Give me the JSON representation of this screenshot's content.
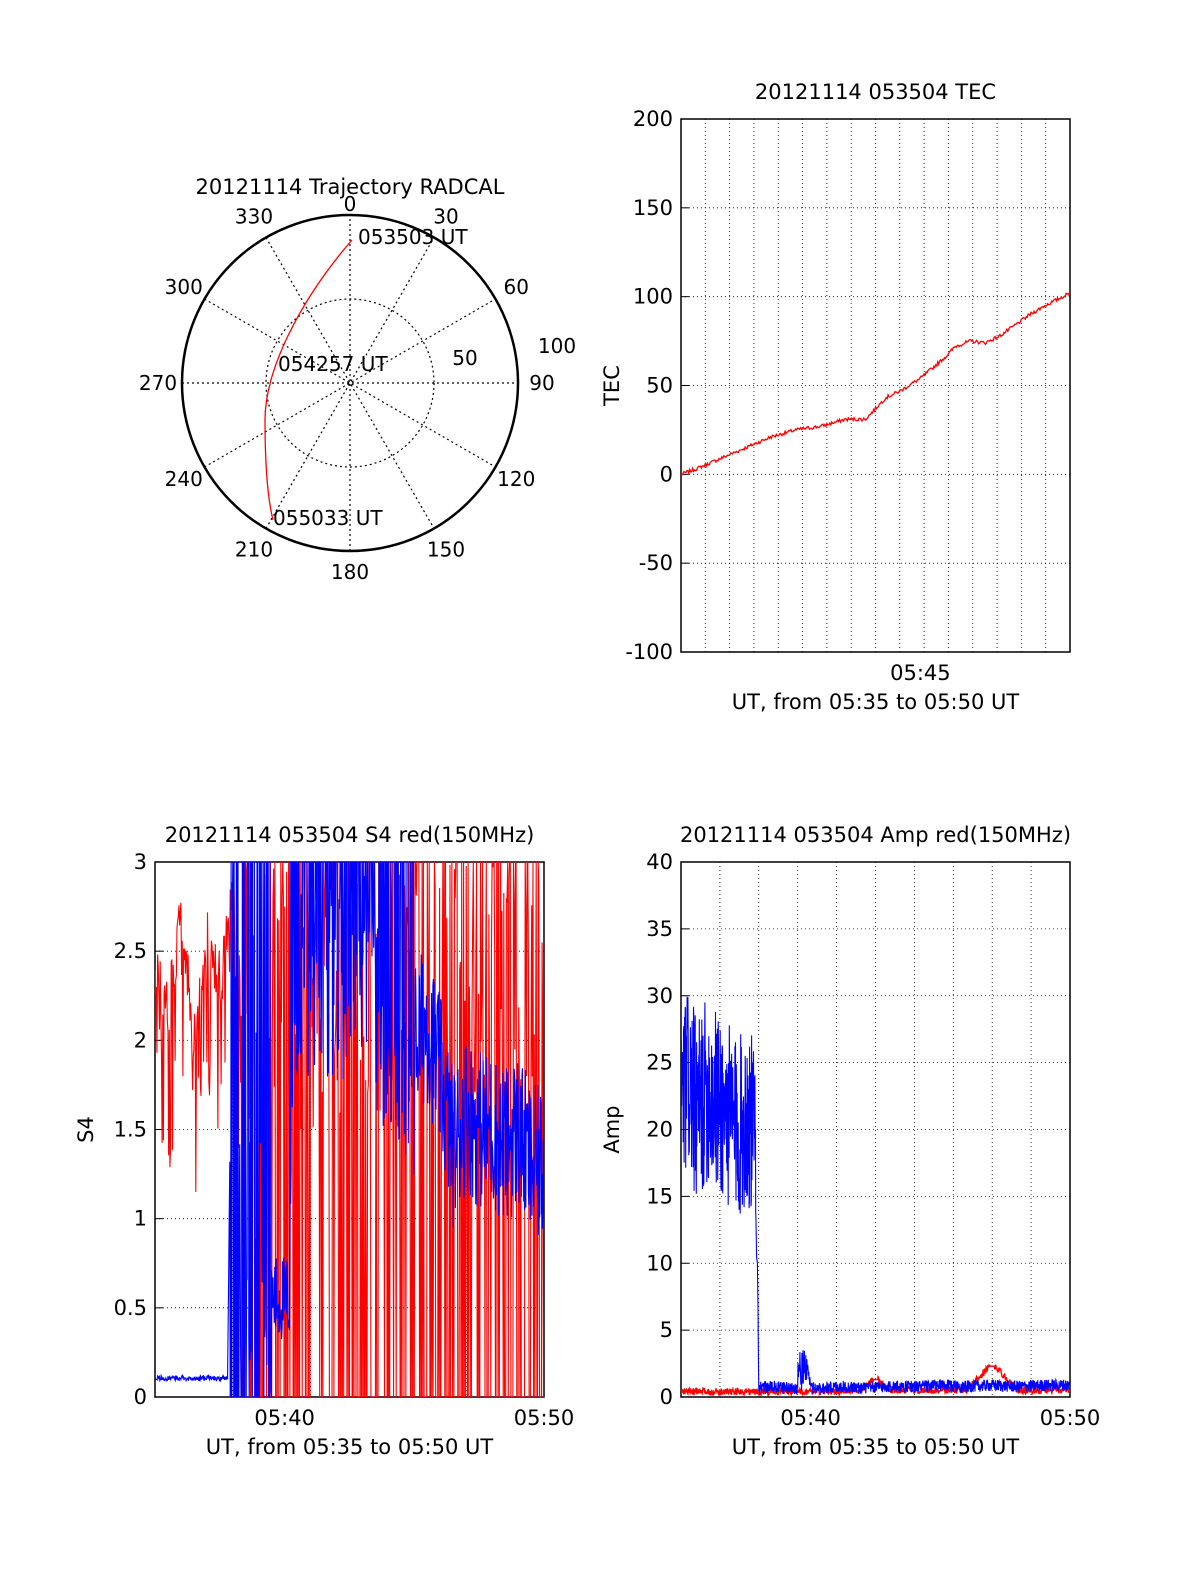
{
  "figure": {
    "trajectory": {
      "title": "20121114 Trajectory RADCAL",
      "azimuth_labels": [
        "0",
        "30",
        "60",
        "90",
        "120",
        "150",
        "180",
        "210",
        "240",
        "270",
        "300",
        "330"
      ],
      "elevation_labels": [
        "50",
        "100"
      ],
      "time_labels": [
        "053503 UT",
        "054257 UT",
        "055033 UT"
      ],
      "track_color": "#ff0000"
    }
  },
  "chart_data": [
    {
      "type": "line",
      "title": "20121114 053504 TEC",
      "xlabel": "UT, from 05:35 to 05:50 UT",
      "ylabel": "TEC",
      "xlim_minutes": [
        40.2,
        48
      ],
      "ylim": [
        -100,
        200
      ],
      "yticks": [
        -100,
        -50,
        0,
        50,
        100,
        150,
        200
      ],
      "xticks": [
        {
          "minute": 45,
          "label": "05:45"
        }
      ],
      "grid": true,
      "series": [
        {
          "color": "#ff0000",
          "x_minutes": [
            40.2,
            40.5,
            41.0,
            41.5,
            42.0,
            42.5,
            43.0,
            43.5,
            43.9,
            44.0,
            44.3,
            44.6,
            45.0,
            45.5,
            45.7,
            46.0,
            46.3,
            46.6,
            46.9,
            47.2,
            47.5,
            48.0
          ],
          "values": [
            0,
            3,
            9,
            15,
            21,
            25,
            27,
            31,
            31,
            34,
            43,
            47,
            54,
            66,
            72,
            75,
            74,
            78,
            84,
            90,
            95,
            102
          ]
        }
      ]
    },
    {
      "type": "line",
      "title": "20121114 053504 S4 red(150MHz)",
      "xlabel": "UT, from 05:35 to 05:50 UT",
      "ylabel": "S4",
      "xlim_minutes": [
        35,
        50
      ],
      "ylim": [
        0,
        3
      ],
      "yticks": [
        0,
        0.5,
        1,
        1.5,
        2,
        2.5,
        3
      ],
      "xticks": [
        {
          "minute": 40,
          "label": "05:40"
        },
        {
          "minute": 50,
          "label": "05:50"
        }
      ],
      "grid": true,
      "series": [
        {
          "color": "#ff0000",
          "description_level": "saturated spikes",
          "x_minutes": [
            35.0,
            35.5,
            36.0,
            36.5,
            37.0,
            37.5,
            38.0,
            38.5,
            39.0,
            39.5,
            40.0,
            40.5,
            41.0,
            41.5,
            42.0,
            42.5,
            43.0,
            43.5,
            44.0,
            44.5,
            45.0,
            45.5,
            46.0,
            46.5,
            47.0,
            47.5,
            48.0,
            48.5,
            49.0,
            49.5
          ],
          "values": [
            2.6,
            2.3,
            2.9,
            2.2,
            2.8,
            2.5,
            3.0,
            2.0,
            2.7,
            3.0,
            2.9,
            3.0,
            3.0,
            3.0,
            3.0,
            3.0,
            3.0,
            3.0,
            3.0,
            3.0,
            3.0,
            3.0,
            3.0,
            3.0,
            3.0,
            3.0,
            3.0,
            3.0,
            3.0,
            3.0
          ]
        },
        {
          "color": "#0000ff",
          "x_minutes": [
            35.0,
            35.5,
            36.0,
            36.5,
            37.0,
            37.5,
            37.8,
            38.0,
            38.5,
            39.0,
            39.5,
            40.0,
            40.5,
            41.0,
            41.5,
            42.0,
            42.5,
            43.0,
            43.5,
            44.0,
            44.5,
            45.0,
            45.5,
            46.0,
            46.5,
            47.0,
            47.5,
            48.0,
            48.5,
            49.0,
            49.5,
            50.0
          ],
          "values": [
            0.11,
            0.1,
            0.11,
            0.1,
            0.11,
            0.1,
            0.11,
            3.0,
            2.5,
            2.2,
            0.4,
            0.3,
            3.0,
            2.6,
            2.8,
            3.0,
            2.9,
            3.0,
            2.7,
            2.4,
            2.2,
            2.0,
            2.1,
            1.8,
            1.4,
            1.6,
            1.5,
            1.5,
            1.4,
            1.5,
            1.3,
            1.3
          ]
        }
      ]
    },
    {
      "type": "line",
      "title": "20121114 053504 Amp red(150MHz)",
      "xlabel": "UT, from 05:35 to 05:50 UT",
      "ylabel": "Amp",
      "xlim_minutes": [
        35,
        50
      ],
      "ylim": [
        0,
        40
      ],
      "yticks": [
        0,
        5,
        10,
        15,
        20,
        25,
        30,
        35,
        40
      ],
      "xticks": [
        {
          "minute": 40,
          "label": "05:40"
        },
        {
          "minute": 50,
          "label": "05:50"
        }
      ],
      "grid": true,
      "series": [
        {
          "color": "#0000ff",
          "x_minutes": [
            35.0,
            35.3,
            35.6,
            36.0,
            36.4,
            36.8,
            37.2,
            37.6,
            37.9,
            38.0,
            38.5,
            39.0,
            39.5,
            39.8,
            40.0,
            40.5,
            41.0,
            42.0,
            43.0,
            44.0,
            45.0,
            46.0,
            47.0,
            48.0,
            49.0,
            50.0
          ],
          "values": [
            22,
            24,
            21,
            23,
            22,
            21,
            20,
            21,
            19,
            0.5,
            0.6,
            0.5,
            0.5,
            3.2,
            0.5,
            0.5,
            0.6,
            0.5,
            0.6,
            0.6,
            0.7,
            0.6,
            0.7,
            0.6,
            0.7,
            0.7
          ]
        },
        {
          "color": "#ff0000",
          "x_minutes": [
            35.0,
            36.0,
            37.0,
            38.0,
            39.0,
            40.0,
            41.0,
            42.0,
            42.5,
            43.0,
            44.0,
            45.0,
            46.0,
            47.0,
            48.0,
            49.0,
            50.0
          ],
          "values": [
            0.4,
            0.4,
            0.4,
            0.4,
            0.4,
            0.4,
            0.4,
            0.5,
            1.5,
            0.5,
            0.5,
            0.5,
            0.5,
            2.5,
            0.5,
            0.5,
            0.5
          ]
        }
      ]
    }
  ]
}
